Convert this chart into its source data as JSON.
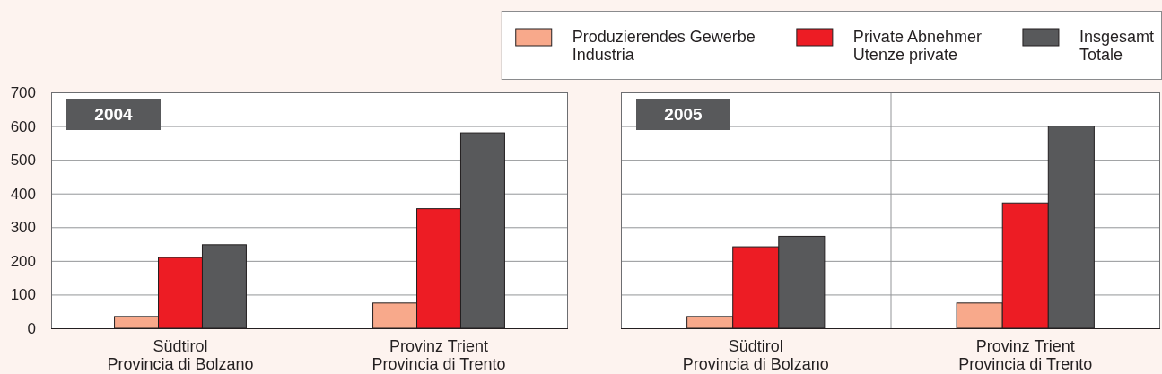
{
  "chart_data": [
    {
      "type": "bar",
      "title": "2004",
      "categories": [
        "Südtirol\nProvincia di Bolzano",
        "Provinz Trient\nProvincia di Trento"
      ],
      "series": [
        {
          "name": "Produzierendes Gewerbe\nIndustria",
          "color": "#f8a98b",
          "values": [
            35,
            75
          ]
        },
        {
          "name": "Private Abnehmer\nUtenze private",
          "color": "#ed1c24",
          "values": [
            210,
            355
          ]
        },
        {
          "name": "Insgesamt\nTotale",
          "color": "#58595b",
          "values": [
            248,
            580
          ]
        }
      ],
      "ylim": [
        0,
        700
      ],
      "yticks": [
        0,
        100,
        200,
        300,
        400,
        500,
        600,
        700
      ],
      "grid": "y",
      "legend": "top right"
    },
    {
      "type": "bar",
      "title": "2005",
      "categories": [
        "Südtirol\nProvincia di Bolzano",
        "Provinz Trient\nProvincia di Trento"
      ],
      "series": [
        {
          "color": "#f8a98b",
          "values": [
            35,
            75
          ]
        },
        {
          "color": "#ed1c24",
          "values": [
            242,
            372
          ]
        },
        {
          "color": "#58595b",
          "values": [
            273,
            600
          ]
        }
      ],
      "ylim": [
        0,
        700
      ],
      "yticks": [
        0,
        100,
        200,
        300,
        400,
        500,
        600,
        700
      ],
      "grid": "y",
      "tick_labels": "x"
    }
  ]
}
